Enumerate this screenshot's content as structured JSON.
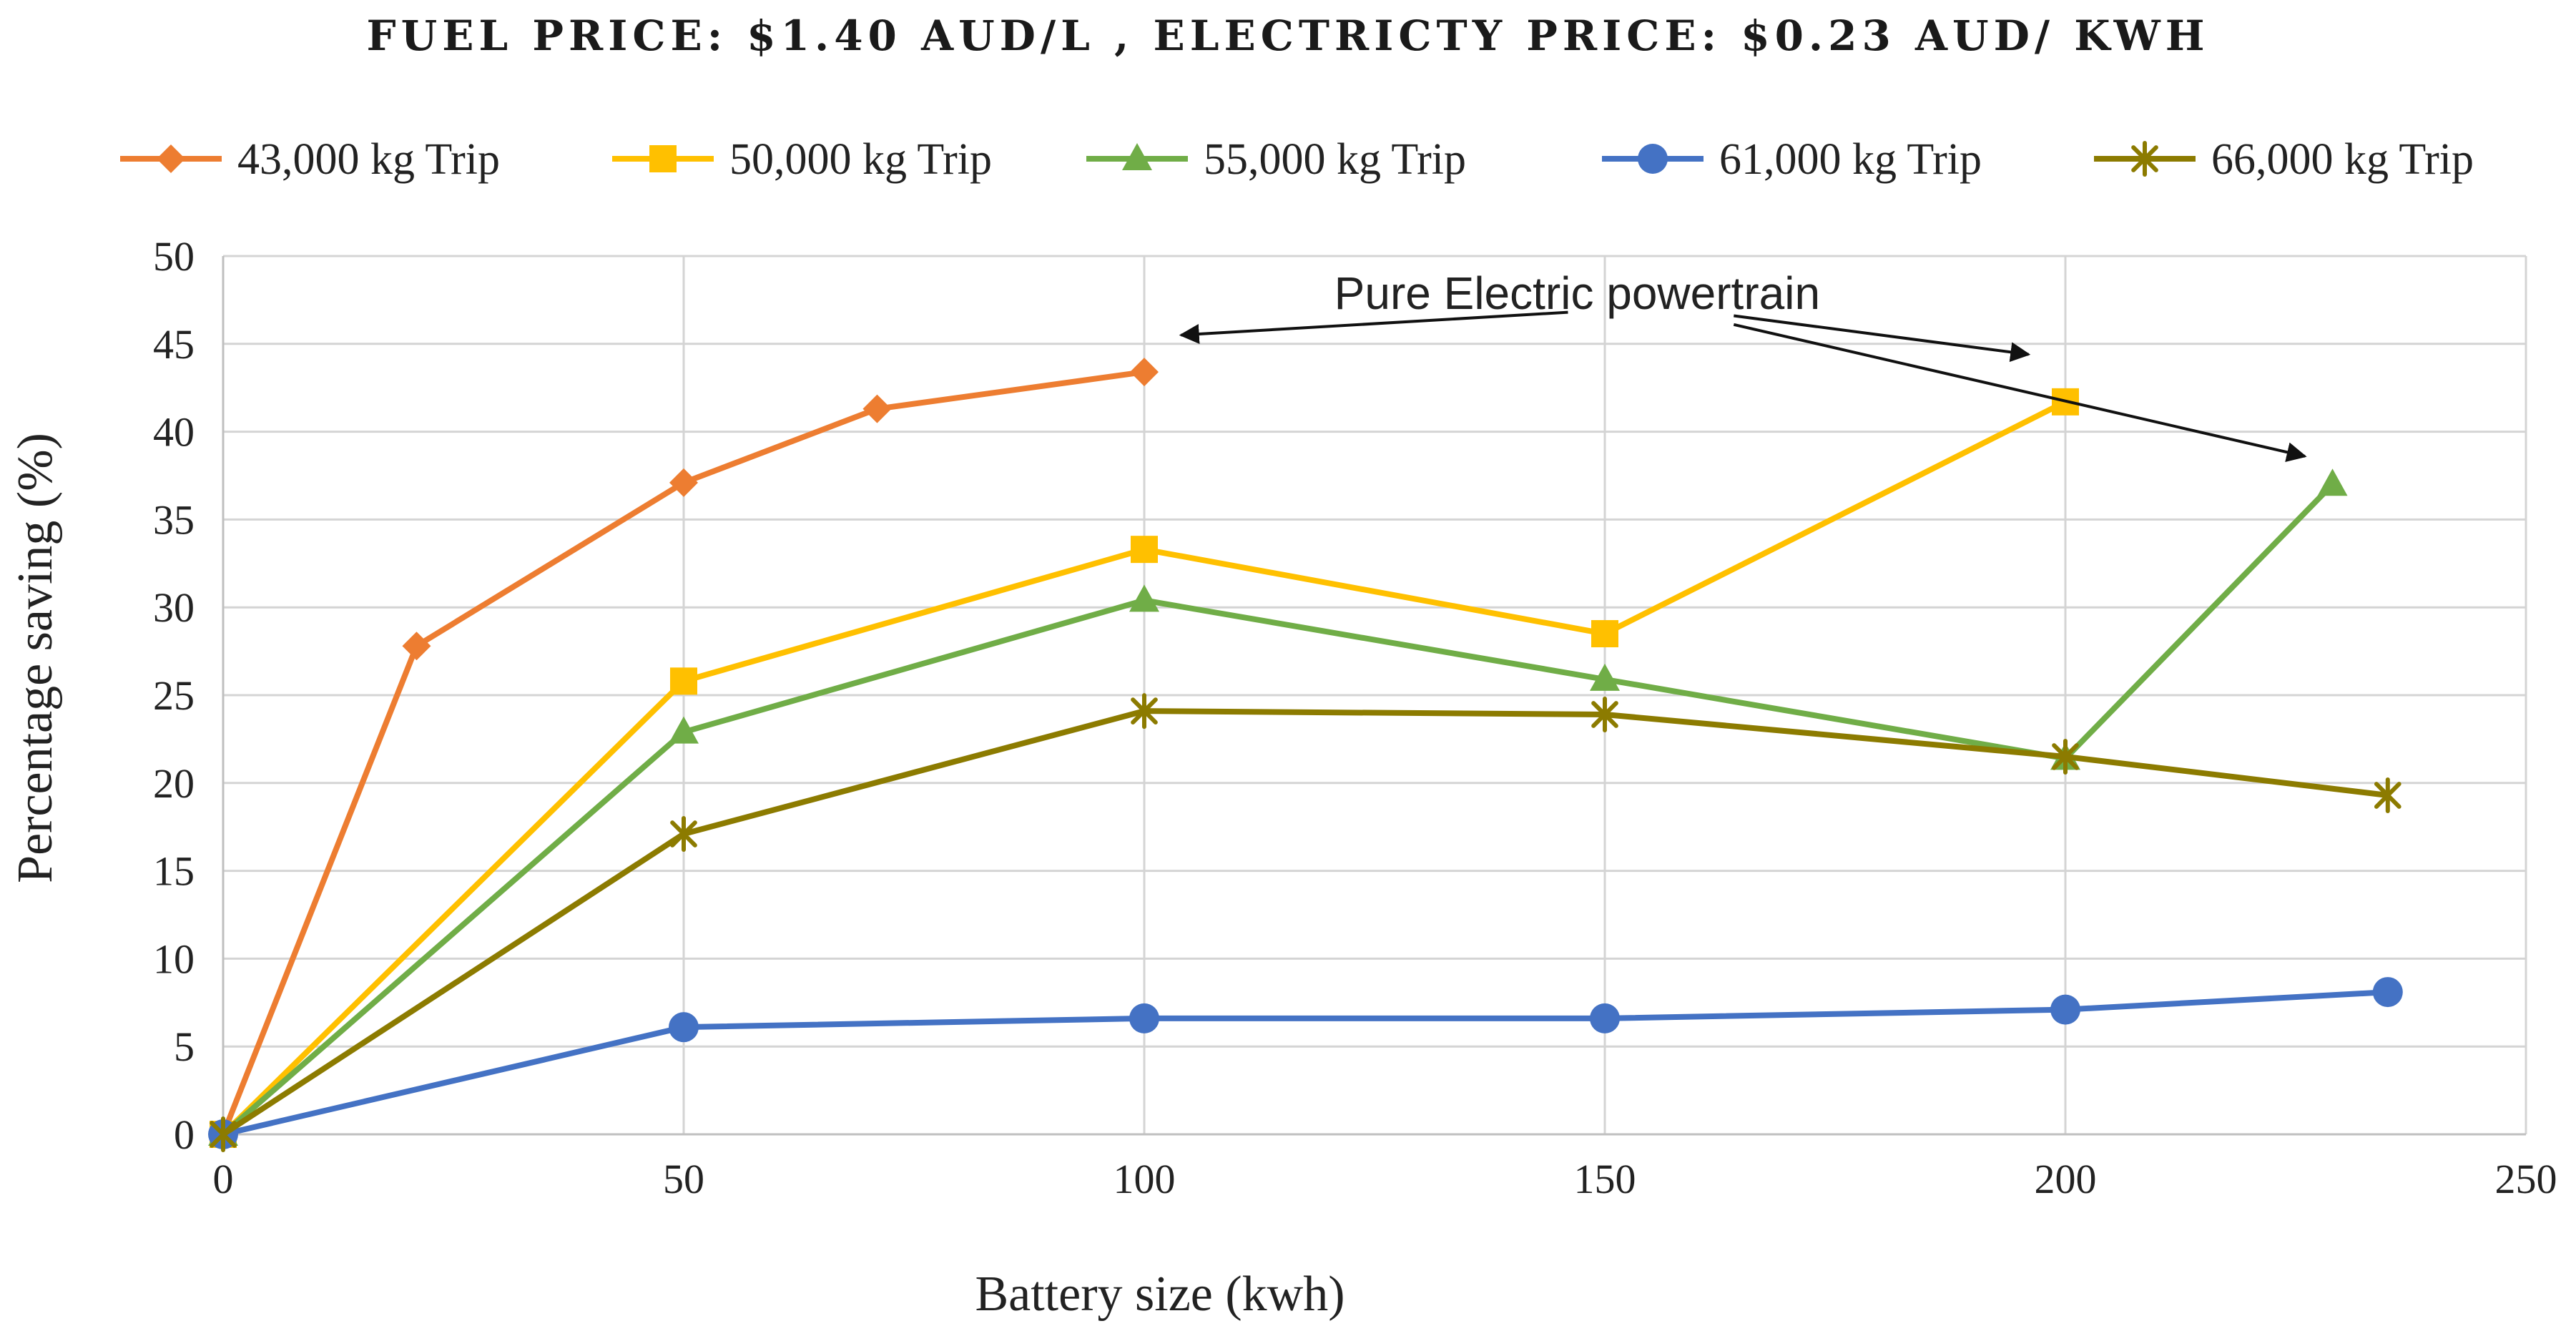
{
  "chart_data": {
    "type": "line",
    "title": "FUEL PRICE: $1.40 AUD/L , ELECTRICTY PRICE: $0.23 AUD/ KWH",
    "xlabel": "Battery size (kwh)",
    "ylabel": "Percentage saving (%)",
    "xlim": [
      0,
      250
    ],
    "ylim": [
      0,
      50
    ],
    "xticks": [
      0,
      50,
      100,
      150,
      200,
      250
    ],
    "yticks": [
      0,
      5,
      10,
      15,
      20,
      25,
      30,
      35,
      40,
      45,
      50
    ],
    "grid": true,
    "legend_position": "top",
    "series": [
      {
        "name": "43,000 kg Trip",
        "color": "#ED7D31",
        "marker": "diamond",
        "points": [
          [
            0,
            0
          ],
          [
            21,
            27.8
          ],
          [
            50,
            37.1
          ],
          [
            71,
            41.3
          ],
          [
            100,
            43.4
          ]
        ]
      },
      {
        "name": "50,000 kg Trip",
        "color": "#FFC000",
        "marker": "square",
        "points": [
          [
            0,
            0
          ],
          [
            50,
            25.8
          ],
          [
            100,
            33.3
          ],
          [
            150,
            28.5
          ],
          [
            200,
            41.7
          ]
        ]
      },
      {
        "name": "55,000 kg Trip",
        "color": "#70AD47",
        "marker": "triangle",
        "points": [
          [
            0,
            0
          ],
          [
            50,
            22.9
          ],
          [
            100,
            30.4
          ],
          [
            150,
            25.9
          ],
          [
            200,
            21.4
          ],
          [
            229,
            37
          ]
        ]
      },
      {
        "name": "61,000 kg Trip",
        "color": "#4472C4",
        "marker": "circle",
        "points": [
          [
            0,
            0
          ],
          [
            50,
            6.1
          ],
          [
            100,
            6.6
          ],
          [
            150,
            6.6
          ],
          [
            200,
            7.1
          ],
          [
            235,
            8.1
          ]
        ]
      },
      {
        "name": "66,000 kg Trip",
        "color": "#8C7B00",
        "marker": "star",
        "points": [
          [
            0,
            0
          ],
          [
            50,
            17.1
          ],
          [
            100,
            24.1
          ],
          [
            150,
            23.9
          ],
          [
            200,
            21.5
          ],
          [
            235,
            19.3
          ]
        ]
      }
    ],
    "annotations": [
      {
        "text": "Pure Electric powertrain",
        "anchor": [
          147,
          47.8
        ],
        "arrows": [
          {
            "from": [
              146,
              46.8
            ],
            "to": [
              104,
              45.5
            ]
          },
          {
            "from": [
              164,
              46.6
            ],
            "to": [
              196,
              44.4
            ]
          },
          {
            "from": [
              164,
              46.1
            ],
            "to": [
              226,
              38.6
            ]
          }
        ]
      }
    ]
  }
}
